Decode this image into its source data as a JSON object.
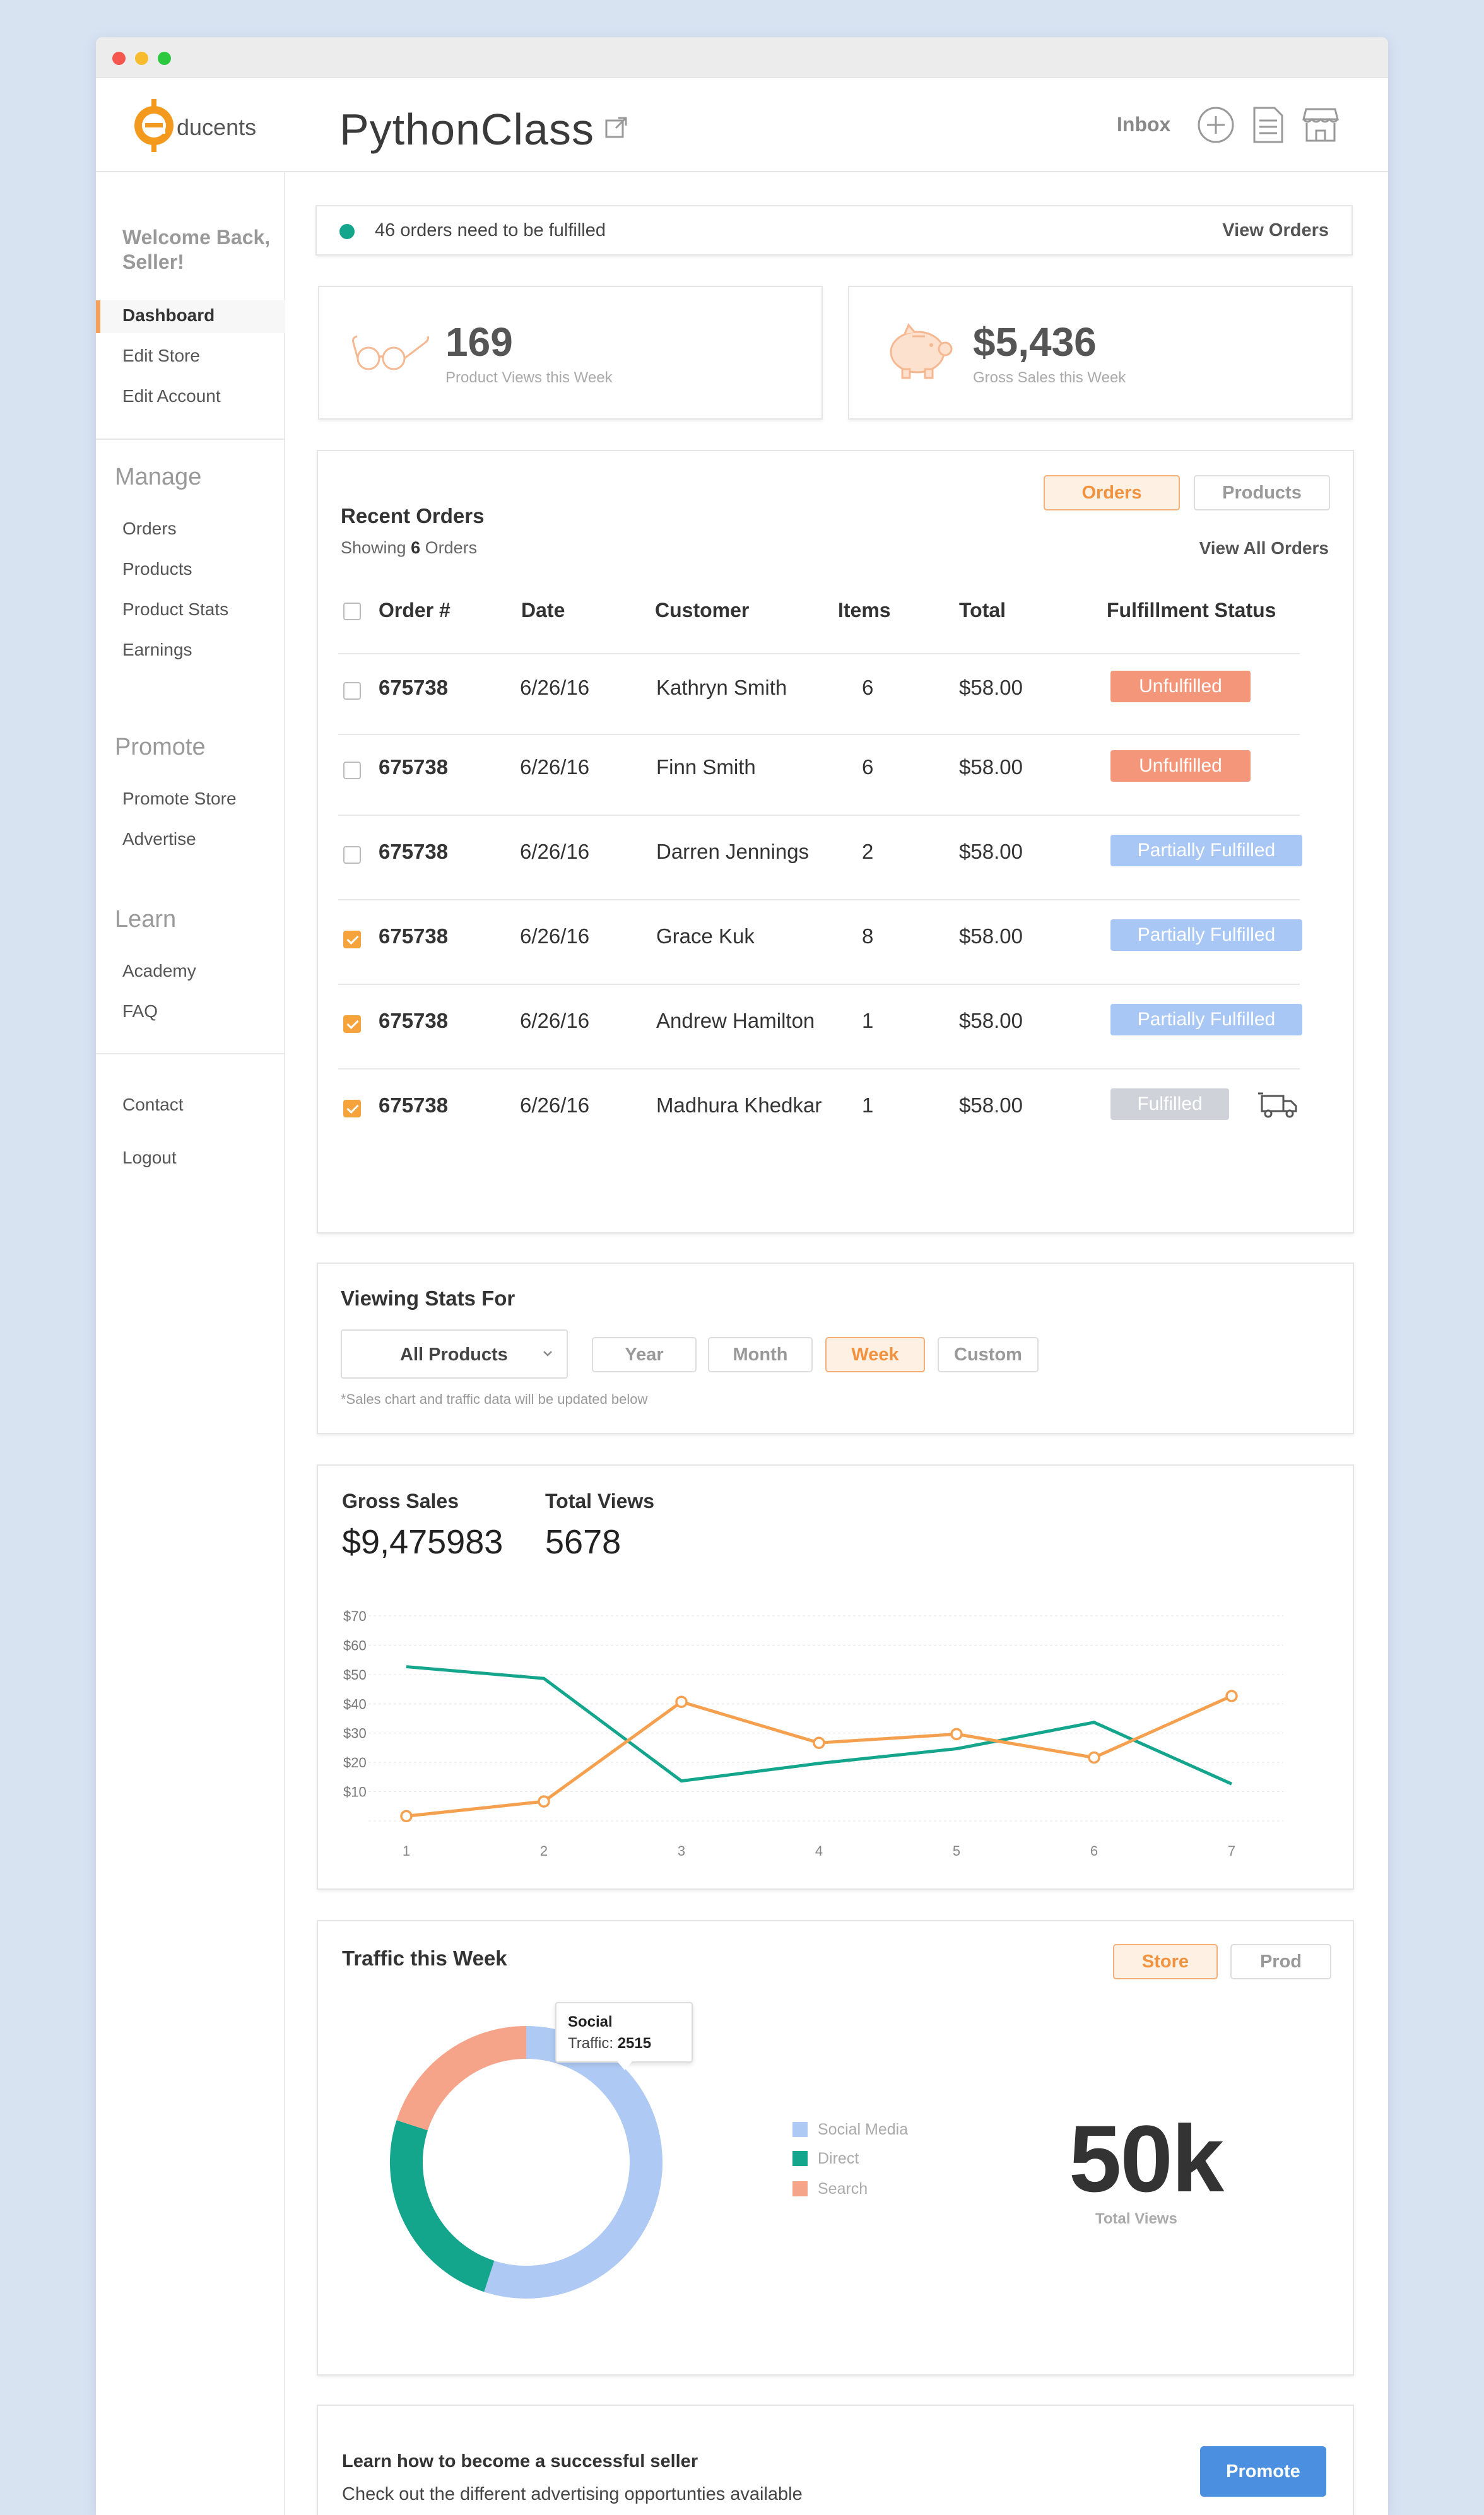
{
  "app": {
    "logo_text": "ducents",
    "title": "PythonClass",
    "inbox_label": "Inbox",
    "icons": [
      "external-link-icon",
      "add-circle-icon",
      "document-icon",
      "storefront-icon"
    ]
  },
  "sidebar": {
    "welcome": "Welcome Back, Seller!",
    "top_links": [
      "Dashboard",
      "Edit Store",
      "Edit Account"
    ],
    "active": "Dashboard",
    "sections": [
      {
        "heading": "Manage",
        "links": [
          "Orders",
          "Products",
          "Product Stats",
          "Earnings"
        ]
      },
      {
        "heading": "Promote",
        "links": [
          "Promote Store",
          "Advertise"
        ]
      },
      {
        "heading": "Learn",
        "links": [
          "Academy",
          "FAQ"
        ]
      }
    ],
    "bottom_links": [
      "Contact",
      "Logout"
    ]
  },
  "notice": {
    "text": "46 orders need to be fulfilled",
    "link": "View Orders",
    "status_color": "#14a58d"
  },
  "stats": [
    {
      "value": "169",
      "label": "Product Views this Week",
      "icon": "glasses-icon"
    },
    {
      "value": "$5,436",
      "label": "Gross Sales this Week",
      "icon": "piggy-bank-icon"
    }
  ],
  "orders": {
    "tabs": [
      "Orders",
      "Products"
    ],
    "active_tab": "Orders",
    "title": "Recent Orders",
    "showing_prefix": "Showing",
    "showing_count": "6",
    "showing_suffix": "Orders",
    "view_all": "View All Orders",
    "columns": [
      "Order #",
      "Date",
      "Customer",
      "Items",
      "Total",
      "Fulfillment Status"
    ],
    "rows": [
      {
        "checked": false,
        "order": "675738",
        "date": "6/26/16",
        "customer": "Kathryn Smith",
        "items": "6",
        "total": "$58.00",
        "status": "Unfulfilled",
        "status_type": "unf"
      },
      {
        "checked": false,
        "order": "675738",
        "date": "6/26/16",
        "customer": "Finn Smith",
        "items": "6",
        "total": "$58.00",
        "status": "Unfulfilled",
        "status_type": "unf"
      },
      {
        "checked": false,
        "order": "675738",
        "date": "6/26/16",
        "customer": "Darren Jennings",
        "items": "2",
        "total": "$58.00",
        "status": "Partially Fulfilled",
        "status_type": "part"
      },
      {
        "checked": true,
        "order": "675738",
        "date": "6/26/16",
        "customer": "Grace Kuk",
        "items": "8",
        "total": "$58.00",
        "status": "Partially Fulfilled",
        "status_type": "part"
      },
      {
        "checked": true,
        "order": "675738",
        "date": "6/26/16",
        "customer": "Andrew Hamilton",
        "items": "1",
        "total": "$58.00",
        "status": "Partially Fulfilled",
        "status_type": "part"
      },
      {
        "checked": true,
        "order": "675738",
        "date": "6/26/16",
        "customer": "Madhura Khedkar",
        "items": "1",
        "total": "$58.00",
        "status": "Fulfilled",
        "status_type": "full",
        "shipping_icon": "delivery-truck-icon"
      }
    ]
  },
  "viewing": {
    "title": "Viewing Stats For",
    "dropdown_value": "All Products",
    "periods": [
      "Year",
      "Month",
      "Week",
      "Custom"
    ],
    "active_period": "Week",
    "note": "*Sales chart and traffic data will be updated below"
  },
  "sales": {
    "gross_label": "Gross Sales",
    "gross_value": "$9,475983",
    "views_label": "Total Views",
    "views_value": "5678"
  },
  "chart_data": {
    "type": "line",
    "x": [
      1,
      2,
      3,
      4,
      5,
      6,
      7
    ],
    "ytick_labels": [
      "$70",
      "$60",
      "$50",
      "$40",
      "$30",
      "$20",
      "$10"
    ],
    "ylim": [
      0,
      70
    ],
    "grid": true,
    "series": [
      {
        "color": "#14a58d",
        "values": [
          52,
          48,
          13,
          19,
          24,
          33,
          12
        ]
      },
      {
        "color": "#f5a04e",
        "values": [
          1,
          6,
          40,
          26,
          29,
          21,
          42
        ]
      }
    ]
  },
  "traffic": {
    "title": "Traffic this Week",
    "tabs": [
      "Store",
      "Prod"
    ],
    "active_tab": "Store",
    "legend": [
      {
        "label": "Social Media",
        "color": "#aec9f3"
      },
      {
        "label": "Direct",
        "color": "#14a58d"
      },
      {
        "label": "Search",
        "color": "#f5a48a"
      }
    ],
    "donut_fractions": [
      0.55,
      0.25,
      0.2
    ],
    "tooltip_title": "Social",
    "tooltip_label": "Traffic:",
    "tooltip_value": "2515",
    "total_value": "50k",
    "total_label": "Total Views"
  },
  "promo": {
    "title": "Learn how to become a successful seller",
    "subtitle": "Check out the different advertising opportunties available",
    "button": "Promote"
  }
}
